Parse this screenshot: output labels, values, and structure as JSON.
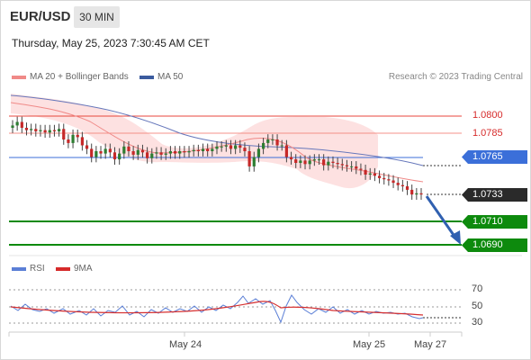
{
  "header": {
    "symbol": "EUR/USD",
    "timeframe": "30 MIN"
  },
  "datetime": "Thursday, May 25, 2023 7:30:45 AM CET",
  "legend": {
    "bb_label": "MA 20 + Bollinger Bands",
    "ma50_label": "MA 50",
    "copyright": "Research © 2023 Trading Central"
  },
  "colors": {
    "resistance": "#e8463c",
    "pivot": "#3b6fd9",
    "support": "#0d8a0d",
    "last_price": "#2a2a2a",
    "bollinger_fill": "#fcd7d7",
    "ma50": "#6677bb",
    "arrow": "#3060b0"
  },
  "levels": {
    "r2": "1.0800",
    "r1": "1.0785",
    "pivot": "1.0765",
    "last": "1.0733",
    "s1": "1.0710",
    "s2": "1.0690"
  },
  "rsi": {
    "rsi_label": "RSI",
    "ma_label": "9MA",
    "levels": [
      "70",
      "50",
      "30"
    ]
  },
  "x_axis": {
    "labels": [
      "May 24",
      "May 25",
      "May 27"
    ]
  },
  "chart_data": {
    "type": "candlestick",
    "closes": [
      1.0792,
      1.0795,
      1.079,
      1.0788,
      1.0789,
      1.0787,
      1.0788,
      1.0786,
      1.0788,
      1.0787,
      1.0789,
      1.078,
      1.0777,
      1.0784,
      1.0782,
      1.0775,
      1.0772,
      1.0765,
      1.077,
      1.0768,
      1.0772,
      1.0769,
      1.0763,
      1.0768,
      1.0774,
      1.077,
      1.0767,
      1.0771,
      1.0769,
      1.0764,
      1.0768,
      1.0769,
      1.0767,
      1.0768,
      1.077,
      1.0768,
      1.077,
      1.0769,
      1.077,
      1.0771,
      1.077,
      1.0772,
      1.077,
      1.0772,
      1.0774,
      1.0774,
      1.0775,
      1.0772,
      1.0775,
      1.0773,
      1.077,
      1.0757,
      1.0765,
      1.0772,
      1.0777,
      1.078,
      1.078,
      1.0775,
      1.0775,
      1.0765,
      1.0763,
      1.076,
      1.0762,
      1.0759,
      1.0762,
      1.0763,
      1.0763,
      1.0758,
      1.0761,
      1.076,
      1.0759,
      1.0758,
      1.0757,
      1.0757,
      1.0755,
      1.0754,
      1.075,
      1.0751,
      1.0749,
      1.0747,
      1.0746,
      1.0745,
      1.0743,
      1.0741,
      1.074,
      1.0737,
      1.0733,
      1.0734,
      1.0733
    ],
    "ma50_label": "MA 50",
    "pivot": 1.0765,
    "resistance": [
      1.0785,
      1.08
    ],
    "support": [
      1.071,
      1.069
    ],
    "last": 1.0733
  }
}
